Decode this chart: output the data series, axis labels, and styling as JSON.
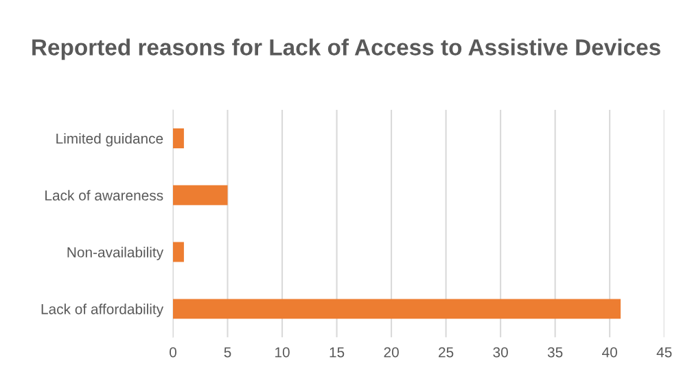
{
  "chart_data": {
    "type": "bar",
    "title": "Reported reasons for Lack of Access to Assistive Devices",
    "orientation": "horizontal",
    "categories": [
      "Limited guidance",
      "Lack of awareness",
      "Non-availability",
      "Lack of affordability"
    ],
    "values": [
      1,
      5,
      1,
      41
    ],
    "color": "#ed7d31",
    "xlim": [
      0,
      45
    ],
    "xticks": [
      0,
      5,
      10,
      15,
      20,
      25,
      30,
      35,
      40,
      45
    ],
    "grid": "x"
  }
}
